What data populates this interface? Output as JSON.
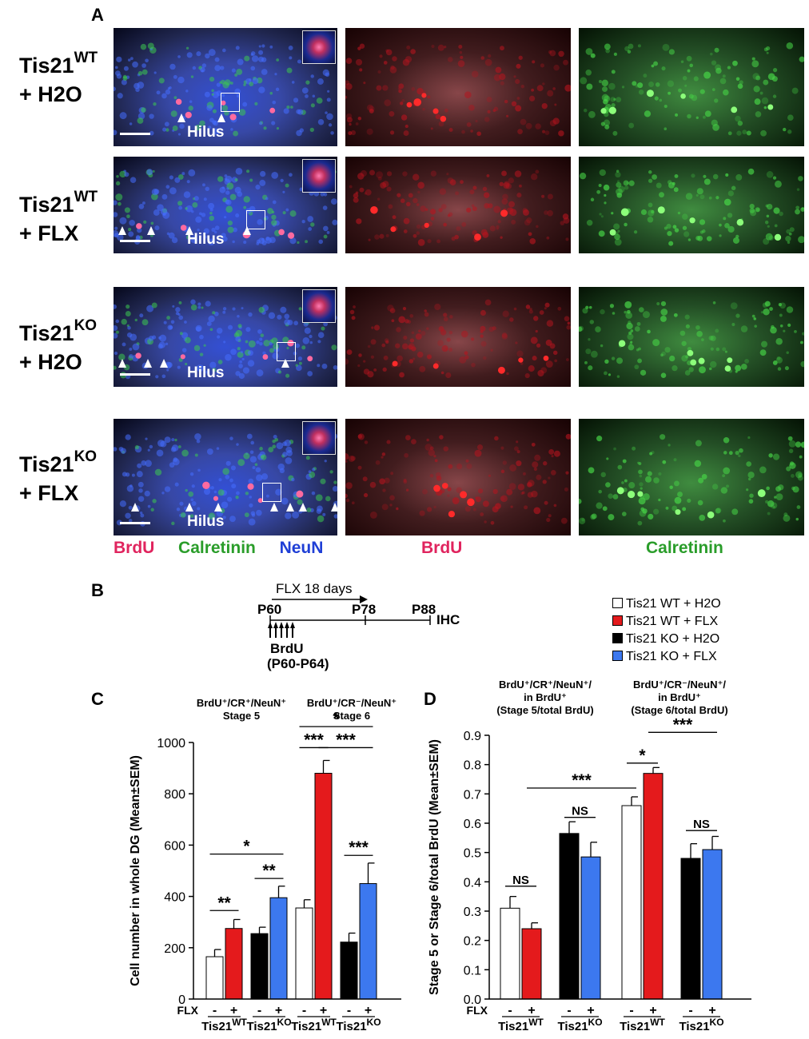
{
  "panelA": {
    "letter": "A",
    "rows": [
      {
        "name": "Tis21",
        "sup": "WT",
        "treatment": "+ H2O",
        "hilus": "Hilus"
      },
      {
        "name": "Tis21",
        "sup": "WT",
        "treatment": "+ FLX",
        "hilus": "Hilus"
      },
      {
        "name": "Tis21",
        "sup": "KO",
        "treatment": "+ H2O",
        "hilus": "Hilus"
      },
      {
        "name": "Tis21",
        "sup": "KO",
        "treatment": "+ FLX",
        "hilus": "Hilus"
      }
    ],
    "merged_channels": [
      {
        "label": "BrdU",
        "color": "#e0245e"
      },
      {
        "label": "Calretinin",
        "color": "#2a9d2a"
      },
      {
        "label": "NeuN",
        "color": "#1f3fd6"
      }
    ],
    "red_channel": {
      "label": "BrdU",
      "color": "#e0245e"
    },
    "green_channel": {
      "label": "Calretinin",
      "color": "#2a9d2a"
    }
  },
  "panelB": {
    "letter": "B",
    "flx_label": "FLX 18 days",
    "timepoints": [
      "P60",
      "P78",
      "P88"
    ],
    "end_label": "IHC",
    "brdu_label": "BrdU",
    "brdu_range": "(P60-P64)"
  },
  "legend": [
    {
      "label": "Tis21 WT + H2O",
      "color": "#ffffff"
    },
    {
      "label": "Tis21 WT + FLX",
      "color": "#e41a1c"
    },
    {
      "label": "Tis21 KO + H2O",
      "color": "#000000"
    },
    {
      "label": "Tis21 KO + FLX",
      "color": "#3c78ef"
    }
  ],
  "chart_data": [
    {
      "panel": "C",
      "type": "bar",
      "ylabel": "Cell number in whole DG (Mean±SEM)",
      "ylim": [
        0,
        1000
      ],
      "yticks": [
        "0",
        "200",
        "400",
        "600",
        "800",
        "1000"
      ],
      "groups": [
        {
          "title_lines": [
            "BrdU⁺/CR⁺/NeuN⁺",
            "Stage 5"
          ],
          "bars": [
            {
              "series": "Tis21 WT + H2O",
              "value": 165,
              "error": 28
            },
            {
              "series": "Tis21 WT + FLX",
              "value": 275,
              "error": 35
            },
            {
              "series": "Tis21 KO + H2O",
              "value": 255,
              "error": 25
            },
            {
              "series": "Tis21 KO + FLX",
              "value": 395,
              "error": 45
            }
          ]
        },
        {
          "title_lines": [
            "BrdU⁺/CR⁻/NeuN⁺",
            "Stage 6"
          ],
          "bars": [
            {
              "series": "Tis21 WT + H2O",
              "value": 355,
              "error": 32
            },
            {
              "series": "Tis21 WT + FLX",
              "value": 880,
              "error": 50
            },
            {
              "series": "Tis21 KO + H2O",
              "value": 222,
              "error": 35
            },
            {
              "series": "Tis21 KO + FLX",
              "value": 450,
              "error": 80
            }
          ]
        }
      ],
      "significance": [
        {
          "group": 0,
          "from": 0,
          "to": 1,
          "label": "**",
          "y": 345
        },
        {
          "group": 0,
          "from": 2,
          "to": 3,
          "label": "**",
          "y": 470
        },
        {
          "group": 0,
          "from": 0,
          "to": 3,
          "label": "*",
          "y": 565
        },
        {
          "group": 1,
          "from": 0,
          "to": 1,
          "label": "***",
          "y": 980
        },
        {
          "group": 1,
          "from": 1,
          "to": 3,
          "label": "***",
          "y": 980
        },
        {
          "group": 1,
          "from": 0,
          "to": 3,
          "label": "*",
          "y": 1062
        },
        {
          "group": 1,
          "from": 2,
          "to": 3,
          "label": "***",
          "y": 560
        }
      ],
      "flx_label": "FLX",
      "flx_signs": [
        "-",
        "+",
        "-",
        "+"
      ],
      "genotypes": [
        {
          "name": "Tis21",
          "sup": "WT"
        },
        {
          "name": "Tis21",
          "sup": "KO"
        }
      ]
    },
    {
      "panel": "D",
      "type": "bar",
      "ylabel": "Stage 5 or Stage 6/total BrdU (Mean±SEM)",
      "ylim": [
        0,
        0.9
      ],
      "yticks": [
        "0.0",
        "0.1",
        "0.2",
        "0.3",
        "0.4",
        "0.5",
        "0.6",
        "0.7",
        "0.8",
        "0.9"
      ],
      "groups": [
        {
          "title_lines": [
            "BrdU⁺/CR⁺/NeuN⁺/",
            "in BrdU⁺",
            "(Stage 5/total BrdU)"
          ],
          "bars": [
            {
              "series": "Tis21 WT + H2O",
              "value": 0.31,
              "error": 0.04
            },
            {
              "series": "Tis21 WT + FLX",
              "value": 0.24,
              "error": 0.02
            },
            {
              "series": "Tis21 KO + H2O",
              "value": 0.565,
              "error": 0.04
            },
            {
              "series": "Tis21 KO + FLX",
              "value": 0.485,
              "error": 0.05
            }
          ]
        },
        {
          "title_lines": [
            "BrdU⁺/CR⁻/NeuN⁺/",
            "in BrdU⁺",
            "(Stage 6/total BrdU)"
          ],
          "bars": [
            {
              "series": "Tis21 WT + H2O",
              "value": 0.66,
              "error": 0.03
            },
            {
              "series": "Tis21 WT + FLX",
              "value": 0.77,
              "error": 0.02
            },
            {
              "series": "Tis21 KO + H2O",
              "value": 0.48,
              "error": 0.05
            },
            {
              "series": "Tis21 KO + FLX",
              "value": 0.51,
              "error": 0.045
            }
          ]
        }
      ],
      "significance": [
        {
          "group": 0,
          "from": 0,
          "to": 1,
          "label": "NS",
          "y": 0.385
        },
        {
          "group": 0,
          "from": 1,
          "to": 2,
          "label": "***",
          "y": 0.72,
          "cross": true
        },
        {
          "group": 0,
          "from": 2,
          "to": 3,
          "label": "NS",
          "y": 0.62
        },
        {
          "group": 1,
          "from": 0,
          "to": 1,
          "label": "*",
          "y": 0.805
        },
        {
          "group": 1,
          "from": 1,
          "to": 3,
          "label": "***",
          "y": 0.91
        },
        {
          "group": 1,
          "from": 2,
          "to": 3,
          "label": "NS",
          "y": 0.575
        }
      ],
      "flx_label": "FLX",
      "flx_signs": [
        "-",
        "+",
        "-",
        "+"
      ],
      "genotypes": [
        {
          "name": "Tis21",
          "sup": "WT"
        },
        {
          "name": "Tis21",
          "sup": "KO"
        }
      ]
    }
  ]
}
